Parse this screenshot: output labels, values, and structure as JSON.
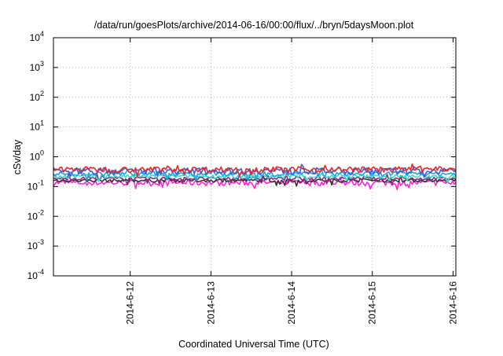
{
  "chart_data": {
    "type": "line",
    "title": "/data/run/goesPlots/archive/2014-06-16/00:00/flux/../bryn/5daysMoon.plot",
    "xlabel": "Coordinated Universal Time (UTC)",
    "ylabel": "cSv/day",
    "yscale": "log",
    "ylim": [
      0.0001,
      10000
    ],
    "xlim": [
      "2014-06-11 01:10",
      "2014-06-16 00:50"
    ],
    "grid": true,
    "y_ticks": [
      {
        "base": "10",
        "exp": "-4"
      },
      {
        "base": "10",
        "exp": "-3"
      },
      {
        "base": "10",
        "exp": "-2"
      },
      {
        "base": "10",
        "exp": "-1"
      },
      {
        "base": "10",
        "exp": "0"
      },
      {
        "base": "10",
        "exp": "1"
      },
      {
        "base": "10",
        "exp": "2"
      },
      {
        "base": "10",
        "exp": "3"
      },
      {
        "base": "10",
        "exp": "4"
      }
    ],
    "x_ticks": [
      "2014-6-12",
      "2014-6-13",
      "2014-6-14",
      "2014-6-15",
      "2014-6-16"
    ],
    "series": [
      {
        "color": "#e8272b",
        "level": 0.38,
        "spread": 0.22
      },
      {
        "color": "#3a5fd8",
        "level": 0.34,
        "spread": 0.25
      },
      {
        "color": "#1fa3e0",
        "level": 0.27,
        "spread": 0.18
      },
      {
        "color": "#33dccd",
        "level": 0.22,
        "spread": 0.14
      },
      {
        "color": "#8a2a78",
        "level": 0.185,
        "spread": 0.12
      },
      {
        "color": "#333333",
        "level": 0.16,
        "spread": 0.12
      },
      {
        "color": "#ff22dd",
        "level": 0.135,
        "spread": 0.22
      }
    ]
  }
}
